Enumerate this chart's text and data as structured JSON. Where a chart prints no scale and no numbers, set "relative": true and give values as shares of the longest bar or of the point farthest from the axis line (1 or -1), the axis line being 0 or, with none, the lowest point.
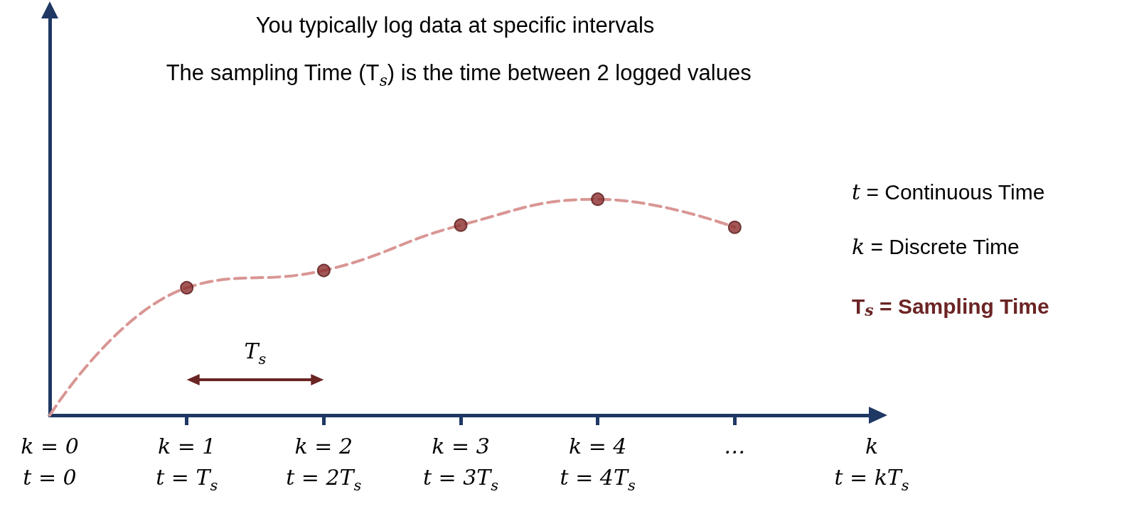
{
  "chart_data": {
    "type": "line",
    "relative": true,
    "title": "You typically log data at specific intervals",
    "subtitle": "The sampling Time (T$_{s}$) is the time between 2 logged values",
    "categories": [
      "k = 0\nt = 0",
      "k = 1\nt = T$_{s}$",
      "k = 2\nt = 2T$_{s}$",
      "k = 3\nt = 3T$_{s}$",
      "k = 4\nt = 4T$_{s}$",
      "…",
      "k\nt = kT$_{s}$"
    ],
    "series": [
      {
        "color": "#d99694",
        "line_style": "dashed",
        "marker": "none",
        "values": [
          0,
          0.59,
          0.67,
          0.88,
          1,
          0.87,
          null
        ]
      },
      {
        "type": "scatter",
        "color": "#8b2d2d",
        "marker": "circle",
        "values": [
          null,
          0.59,
          0.67,
          0.88,
          1,
          0.87,
          null
        ]
      }
    ],
    "annotations": [
      "T$_{s}$",
      "t = Continuous Time",
      "k = Discrete Time",
      "T$_{s}$ = Sampling Time"
    ],
    "grid": false
  }
}
